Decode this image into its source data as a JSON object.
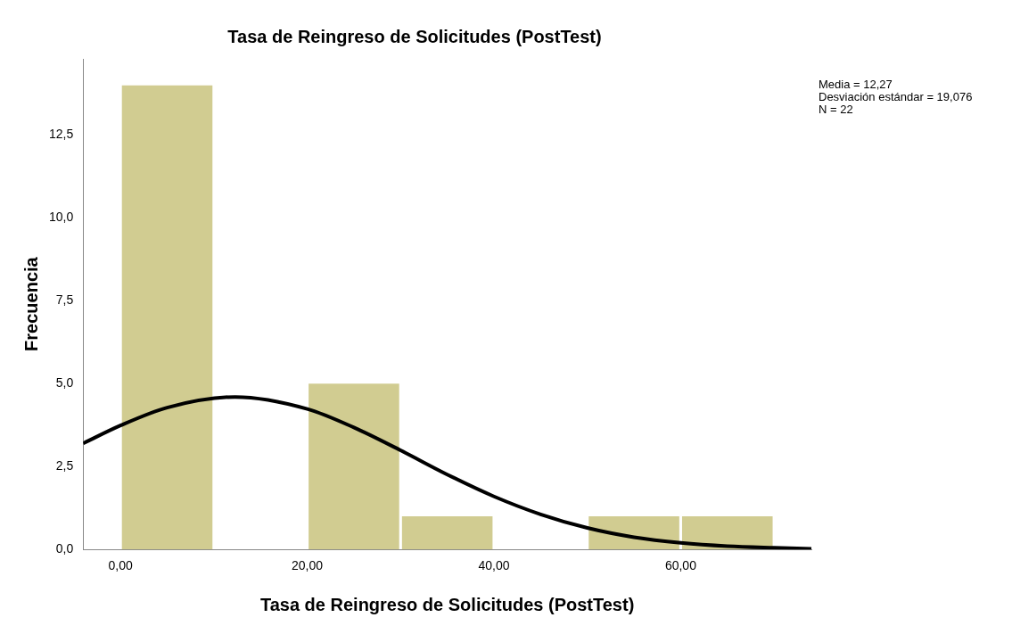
{
  "chart_data": {
    "type": "histogram",
    "title": "Tasa de Reingreso de Solicitudes (PostTest)",
    "xlabel": "Tasa de Reingreso de Solicitudes (PostTest)",
    "ylabel": "Frecuencia",
    "bins": [
      0,
      10,
      20,
      30,
      40,
      50,
      60,
      70
    ],
    "values": [
      14,
      0,
      5,
      1,
      0,
      1,
      1
    ],
    "color": "#d1cc91",
    "series": [
      {
        "type": "line",
        "color": "#000000",
        "x": [
          -4,
          0,
          5,
          12.27,
          20,
          25,
          30,
          35,
          40,
          45,
          50,
          55,
          60,
          65,
          70,
          74
        ],
        "values": [
          3.2,
          3.74,
          4.28,
          4.6,
          4.24,
          3.68,
          2.99,
          2.26,
          1.6,
          1.06,
          0.65,
          0.37,
          0.2,
          0.1,
          0.05,
          0.02
        ]
      }
    ],
    "xlim": [
      -4,
      74
    ],
    "ylim": [
      0,
      14.8
    ],
    "xticks": [
      {
        "value": 0,
        "label": "0,00"
      },
      {
        "value": 20,
        "label": "20,00"
      },
      {
        "value": 40,
        "label": "40,00"
      },
      {
        "value": 60,
        "label": "60,00"
      }
    ],
    "yticks": [
      {
        "value": 0,
        "label": "0,0"
      },
      {
        "value": 2.5,
        "label": "2,5"
      },
      {
        "value": 5,
        "label": "5,0"
      },
      {
        "value": 7.5,
        "label": "7,5"
      },
      {
        "value": 10,
        "label": "10,0"
      },
      {
        "value": 12.5,
        "label": "12,5"
      }
    ],
    "grid": false,
    "legend": false,
    "annotations": [
      "Media = 12,27",
      "Desviación estándar = 19,076",
      "N = 22"
    ]
  }
}
